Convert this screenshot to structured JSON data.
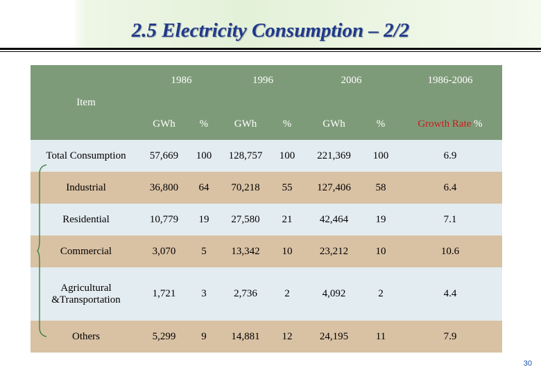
{
  "title": "2.5 Electricity Consumption – 2/2",
  "page_number": "30",
  "table": {
    "item_header": "Item",
    "years": [
      "1986",
      "1996",
      "2006",
      "1986-2006"
    ],
    "sub_headers": {
      "gwh": "GWh",
      "pct": "%",
      "growth_rate": "Growth Rate",
      "growth_pct": "%"
    },
    "rows": [
      {
        "item": "Total Consumption",
        "gwh_1986": "57,669",
        "pct_1986": "100",
        "gwh_1996": "128,757",
        "pct_1996": "100",
        "gwh_2006": "221,369",
        "pct_2006": "100",
        "growth": "6.9"
      },
      {
        "item": "Industrial",
        "gwh_1986": "36,800",
        "pct_1986": "64",
        "gwh_1996": "70,218",
        "pct_1996": "55",
        "gwh_2006": "127,406",
        "pct_2006": "58",
        "growth": "6.4"
      },
      {
        "item": "Residential",
        "gwh_1986": "10,779",
        "pct_1986": "19",
        "gwh_1996": "27,580",
        "pct_1996": "21",
        "gwh_2006": "42,464",
        "pct_2006": "19",
        "growth": "7.1"
      },
      {
        "item": "Commercial",
        "gwh_1986": "3,070",
        "pct_1986": "5",
        "gwh_1996": "13,342",
        "pct_1996": "10",
        "gwh_2006": "23,212",
        "pct_2006": "10",
        "growth": "10.6"
      },
      {
        "item_line1": "Agricultural",
        "item_line2": "&Transportation",
        "gwh_1986": "1,721",
        "pct_1986": "3",
        "gwh_1996": "2,736",
        "pct_1996": "2",
        "gwh_2006": "4,092",
        "pct_2006": "2",
        "growth": "4.4"
      },
      {
        "item": "Others",
        "gwh_1986": "5,299",
        "pct_1986": "9",
        "gwh_1996": "14,881",
        "pct_1996": "12",
        "gwh_2006": "24,195",
        "pct_2006": "11",
        "growth": "7.9"
      }
    ]
  },
  "colors": {
    "title": "#1f3a8a",
    "header_bg": "#7e9b79",
    "row_light": "#e3ecf0",
    "row_tan": "#d9c1a4",
    "growth_label": "#c81e1e",
    "brace": "#2e7d32",
    "page_number": "#1f4fa8"
  }
}
